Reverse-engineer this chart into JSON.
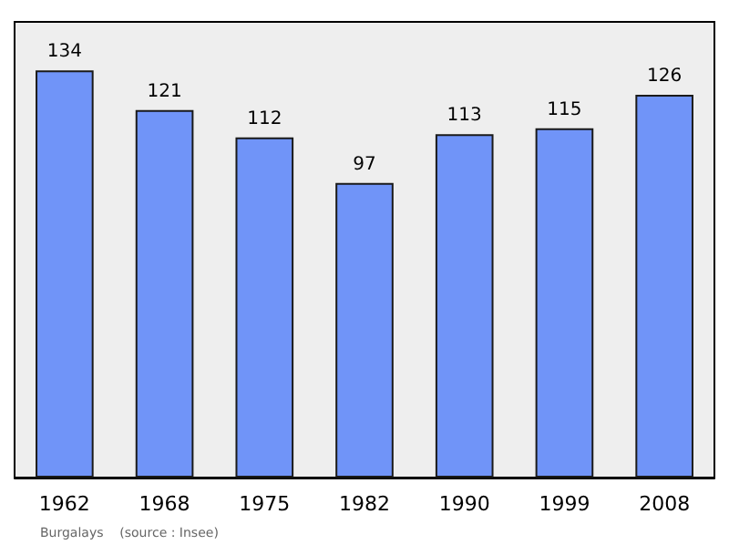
{
  "chart_data": {
    "type": "bar",
    "categories": [
      "1962",
      "1968",
      "1975",
      "1982",
      "1990",
      "1999",
      "2008"
    ],
    "values": [
      134,
      121,
      112,
      97,
      113,
      115,
      126
    ],
    "color": "#7094f8",
    "data_labels": true,
    "annotations": [
      "Burgalays    (source : Insee)"
    ]
  }
}
